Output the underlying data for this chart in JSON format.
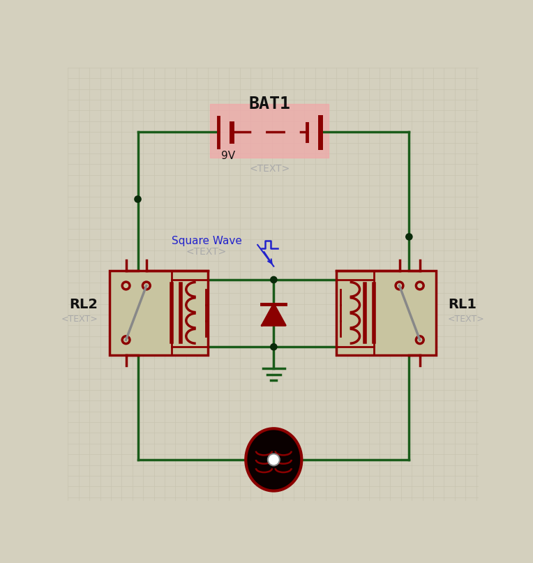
{
  "bg_color": "#d4d0be",
  "grid_color": "#c8c4b0",
  "wire_color": "#1a5c1a",
  "comp_color": "#8b0000",
  "junction_color": "#0a2a0a",
  "text_color": "#111111",
  "subtext_color": "#aaaaaa",
  "blue_color": "#2222cc",
  "bat_highlight": "#f0a8a8",
  "relay_fill": "#c8c4a0",
  "relay_border": "#8b0000",
  "motor_outer": "#0a0000",
  "motor_border": "#8b0000",
  "switch_color": "#888888",
  "gnd_color": "#1a5c1a",
  "figsize": [
    7.64,
    8.07
  ],
  "dpi": 100,
  "bat_label": "BAT1",
  "bat_voltage": "9V",
  "bat_subtext": "<TEXT>",
  "sw_label": "Square Wave",
  "sw_subtext": "<TEXT>",
  "rl1_label": "RL1",
  "rl1_subtext": "<TEXT>",
  "rl2_label": "RL2",
  "rl2_subtext": "<TEXT>"
}
